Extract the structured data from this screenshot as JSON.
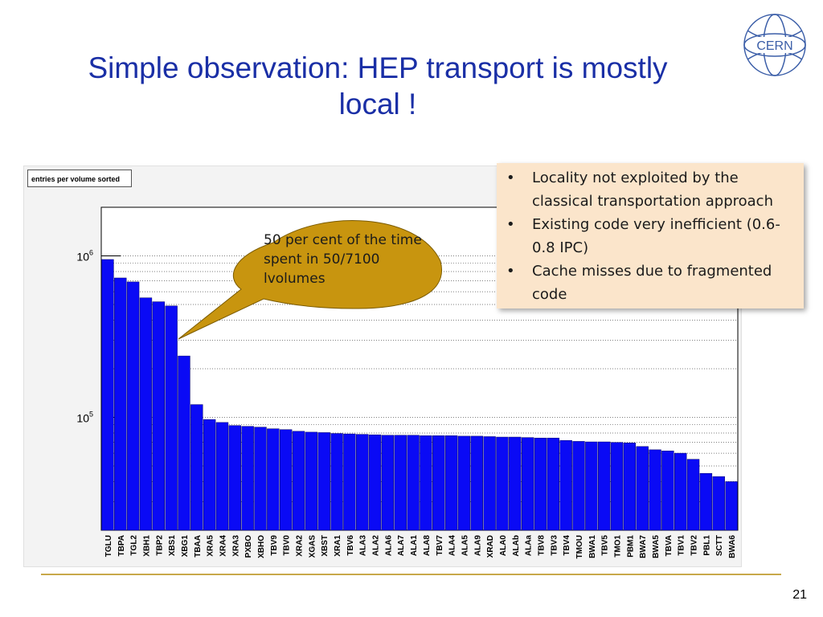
{
  "slide": {
    "title_line1": "Simple observation: HEP transport is mostly",
    "title_line2": "local !",
    "page_number": "21",
    "title_color": "#1a2fa6",
    "logo_text": "CERN"
  },
  "callout": {
    "text": "50 per cent of the time spent in 50/7100 lvolumes",
    "fill_color": "#c8950f"
  },
  "info_box": {
    "bullets": [
      "Locality not exploited by the classical transportation approach",
      "Existing code very inefficient (0.6-0.8 IPC)",
      "Cache misses due to fragmented code"
    ],
    "bullet_glyph": "•",
    "background": "#fbe5cb"
  },
  "chart_data": {
    "type": "bar",
    "title": "entries per volume sorted",
    "scale": "log",
    "ylim": [
      20000,
      2000000
    ],
    "y_ticks": [
      {
        "value": 100000,
        "base": "10",
        "exp": "5"
      },
      {
        "value": 1000000,
        "base": "10",
        "exp": "6"
      }
    ],
    "bar_color": "#0a0af5",
    "grid": "horizontal dotted",
    "categories": [
      "TGLU",
      "TBPA",
      "TGL2",
      "XBH1",
      "TBP2",
      "XBS1",
      "XBG1",
      "TBAA",
      "XRA5",
      "XRA4",
      "XRA3",
      "PXBO",
      "XBHO",
      "TBV9",
      "TBV0",
      "XRA2",
      "XGAS",
      "XBST",
      "XRA1",
      "TBV6",
      "ALA3",
      "ALA2",
      "ALA6",
      "ALA7",
      "ALA1",
      "ALA8",
      "TBV7",
      "ALA4",
      "ALA5",
      "ALA9",
      "XRAD",
      "ALA0",
      "ALAb",
      "ALAa",
      "TBV8",
      "TBV3",
      "TBV4",
      "TMOU",
      "BWA1",
      "TBV5",
      "TMO1",
      "PBM1",
      "BWA7",
      "BWA5",
      "TBVA",
      "TBV1",
      "TBV2",
      "PBL1",
      "SCTT",
      "BWA6"
    ],
    "values": [
      950000,
      730000,
      690000,
      550000,
      520000,
      490000,
      240000,
      120000,
      97000,
      93000,
      89000,
      88000,
      87000,
      85000,
      84000,
      82000,
      81000,
      80500,
      79500,
      79000,
      78500,
      78000,
      77500,
      77500,
      77500,
      77000,
      77000,
      77000,
      76500,
      76500,
      76000,
      75500,
      75500,
      75000,
      74500,
      74500,
      72000,
      71000,
      70500,
      70500,
      70000,
      69500,
      66000,
      63000,
      62000,
      60000,
      55000,
      45000,
      43000,
      40000
    ]
  }
}
